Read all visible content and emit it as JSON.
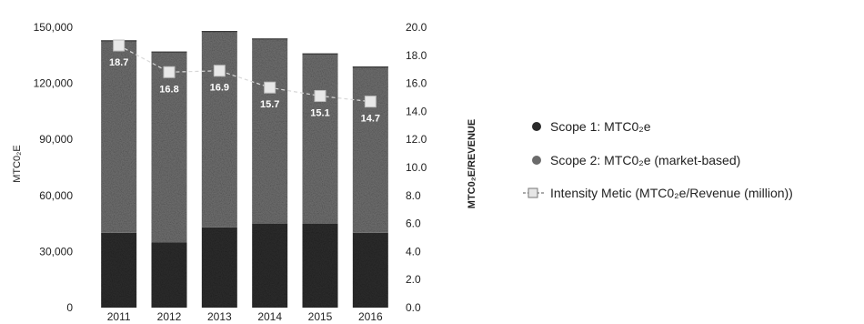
{
  "chart_data": {
    "type": "bar",
    "stacked": true,
    "categories": [
      "2011",
      "2012",
      "2013",
      "2014",
      "2015",
      "2016"
    ],
    "series": [
      {
        "name": "Scope 1: MTC0₂e",
        "values": [
          40000,
          35000,
          43000,
          45000,
          45000,
          40000
        ],
        "color": "#2b2b2b"
      },
      {
        "name": "Scope 2: MTC0₂e (market-based)",
        "values": [
          103000,
          102000,
          105000,
          99000,
          91000,
          89000
        ],
        "color": "#6b6b6b"
      },
      {
        "name": "Intensity Metic (MTC0₂e/Revenue (million))",
        "type": "line",
        "axis": "right",
        "values": [
          18.7,
          16.8,
          16.9,
          15.7,
          15.1,
          14.7
        ],
        "labels": [
          "18.7",
          "16.8",
          "16.9",
          "15.7",
          "15.1",
          "14.7"
        ],
        "color": "#777777"
      }
    ],
    "left_axis": {
      "label": "MTC0₂E",
      "ylim": [
        0,
        150000
      ],
      "ticks": [
        "0",
        "30,000",
        "60,000",
        "90,000",
        "120,000",
        "150,000"
      ],
      "tick_values": [
        0,
        30000,
        60000,
        90000,
        120000,
        150000
      ]
    },
    "right_axis": {
      "label": "MTC0₂E/REVENUE",
      "ylim": [
        0,
        20
      ],
      "ticks": [
        "0.0",
        "2.0",
        "4.0",
        "6.0",
        "8.0",
        "10.0",
        "12.0",
        "14.0",
        "16.0",
        "18.0",
        "20.0"
      ],
      "tick_values": [
        0,
        2,
        4,
        6,
        8,
        10,
        12,
        14,
        16,
        18,
        20
      ]
    },
    "legend_position": "right",
    "grid": false
  }
}
